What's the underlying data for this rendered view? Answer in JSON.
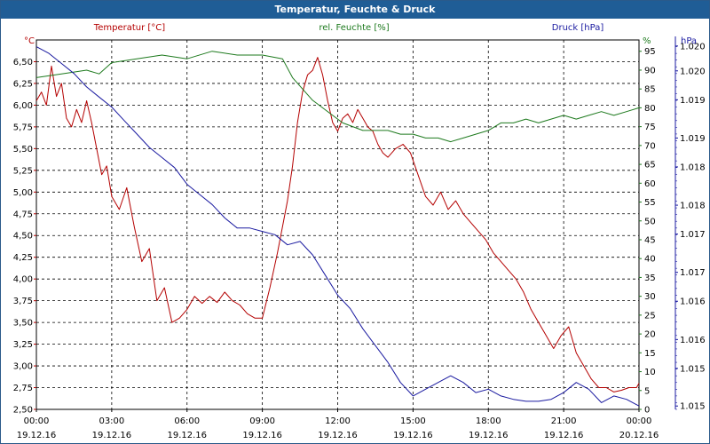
{
  "window": {
    "title": "Temperatur, Feuchte & Druck"
  },
  "chart_data": {
    "type": "line",
    "title": "Temperatur, Feuchte & Druck",
    "grid": true,
    "x_ticks": [
      {
        "time": "00:00",
        "date": "19.12.16"
      },
      {
        "time": "03:00",
        "date": "19.12.16"
      },
      {
        "time": "06:00",
        "date": "19.12.16"
      },
      {
        "time": "09:00",
        "date": "19.12.16"
      },
      {
        "time": "12:00",
        "date": "19.12.16"
      },
      {
        "time": "15:00",
        "date": "19.12.16"
      },
      {
        "time": "18:00",
        "date": "19.12.16"
      },
      {
        "time": "21:00",
        "date": "19.12.16"
      },
      {
        "time": "00:00",
        "date": "20.12.16"
      }
    ],
    "x_hours_range": [
      0,
      24
    ],
    "axes": {
      "temperature": {
        "label": "Temperatur [°C]",
        "unit": "°C",
        "color": "#b40000",
        "range": [
          2.5,
          6.75
        ],
        "tick_labels": [
          "2,50",
          "2,75",
          "3,00",
          "3,25",
          "3,50",
          "3,75",
          "4,00",
          "4,25",
          "4,50",
          "4,75",
          "5,00",
          "5,25",
          "5,50",
          "5,75",
          "6,00",
          "6,25",
          "6,50"
        ]
      },
      "humidity": {
        "label": "rel. Feuchte [%]",
        "unit": "%",
        "color": "#1e7a1e",
        "range": [
          0,
          98
        ],
        "tick_labels": [
          "0",
          "5",
          "10",
          "15",
          "20",
          "25",
          "30",
          "35",
          "40",
          "45",
          "50",
          "55",
          "60",
          "65",
          "70",
          "75",
          "80",
          "85",
          "90",
          "95"
        ]
      },
      "pressure": {
        "label": "Druck [hPa]",
        "unit": "hPa",
        "color": "#1a1aa0",
        "range": [
          1014.8,
          1020.3
        ],
        "tick_labels": [
          "1.015",
          "1.015",
          "1.016",
          "1.016",
          "1.017",
          "1.017",
          "1.018",
          "1.018",
          "1.019",
          "1.019",
          "1.020",
          "1.020"
        ]
      }
    },
    "series": [
      {
        "name": "Temperatur [°C]",
        "axis": "temperature",
        "x": [
          0,
          0.2,
          0.4,
          0.6,
          0.8,
          1,
          1.2,
          1.4,
          1.6,
          1.8,
          2,
          2.2,
          2.4,
          2.6,
          2.8,
          3,
          3.3,
          3.6,
          3.9,
          4.2,
          4.5,
          4.8,
          5.1,
          5.4,
          5.7,
          6,
          6.3,
          6.6,
          6.9,
          7.2,
          7.5,
          7.8,
          8.1,
          8.4,
          8.7,
          9,
          9.3,
          9.6,
          9.8,
          10,
          10.2,
          10.4,
          10.6,
          10.8,
          11,
          11.2,
          11.4,
          11.6,
          11.8,
          12,
          12.2,
          12.4,
          12.6,
          12.8,
          13,
          13.2,
          13.4,
          13.6,
          13.8,
          14,
          14.3,
          14.6,
          14.9,
          15.2,
          15.5,
          15.8,
          16.1,
          16.4,
          16.7,
          17,
          17.3,
          17.6,
          17.9,
          18.2,
          18.5,
          18.8,
          19.1,
          19.4,
          19.7,
          20,
          20.3,
          20.6,
          20.9,
          21.2,
          21.5,
          21.8,
          22.1,
          22.4,
          22.7,
          23,
          23.3,
          23.6,
          23.9,
          24
        ],
        "values": [
          6.05,
          6.15,
          6.0,
          6.45,
          6.1,
          6.25,
          5.85,
          5.75,
          5.95,
          5.8,
          6.05,
          5.8,
          5.5,
          5.2,
          5.3,
          4.95,
          4.8,
          5.05,
          4.6,
          4.2,
          4.35,
          3.75,
          3.9,
          3.5,
          3.55,
          3.65,
          3.8,
          3.72,
          3.8,
          3.73,
          3.85,
          3.75,
          3.7,
          3.6,
          3.55,
          3.55,
          3.9,
          4.3,
          4.6,
          4.9,
          5.3,
          5.8,
          6.15,
          6.35,
          6.4,
          6.55,
          6.35,
          6.05,
          5.8,
          5.7,
          5.85,
          5.9,
          5.8,
          5.95,
          5.85,
          5.75,
          5.7,
          5.55,
          5.45,
          5.4,
          5.5,
          5.55,
          5.45,
          5.2,
          4.95,
          4.85,
          5.0,
          4.8,
          4.9,
          4.75,
          4.65,
          4.55,
          4.45,
          4.3,
          4.2,
          4.1,
          4.0,
          3.85,
          3.65,
          3.5,
          3.35,
          3.2,
          3.35,
          3.45,
          3.15,
          3.0,
          2.85,
          2.75,
          2.75,
          2.7,
          2.72,
          2.75,
          2.75,
          2.8
        ]
      },
      {
        "name": "rel. Feuchte [%]",
        "axis": "humidity",
        "x": [
          0,
          1,
          2,
          2.5,
          3,
          4,
          5,
          6,
          7,
          8,
          9,
          9.8,
          10.2,
          10.6,
          11,
          11.4,
          11.8,
          12.2,
          12.6,
          13,
          13.5,
          14,
          14.5,
          15,
          15.5,
          16,
          16.5,
          17,
          17.5,
          18,
          18.5,
          19,
          19.5,
          20,
          20.5,
          21,
          21.5,
          22,
          22.5,
          23,
          23.5,
          24
        ],
        "values": [
          88,
          89,
          90,
          89,
          92,
          93,
          94,
          93,
          95,
          94,
          94,
          93,
          88,
          85,
          82,
          80,
          78,
          76,
          75,
          74,
          74,
          74,
          73,
          73,
          72,
          72,
          71,
          72,
          73,
          74,
          76,
          76,
          77,
          76,
          77,
          78,
          77,
          78,
          79,
          78,
          79,
          80
        ]
      },
      {
        "name": "Druck [hPa]",
        "axis": "pressure",
        "x": [
          0,
          0.5,
          1,
          1.5,
          2,
          2.5,
          3,
          3.5,
          4,
          4.5,
          5,
          5.5,
          6,
          6.5,
          7,
          7.5,
          8,
          8.5,
          9,
          9.5,
          10,
          10.5,
          11,
          11.5,
          12,
          12.5,
          13,
          13.5,
          14,
          14.5,
          15,
          15.5,
          16,
          16.5,
          17,
          17.5,
          18,
          18.5,
          19,
          19.5,
          20,
          20.5,
          21,
          21.5,
          22,
          22.5,
          23,
          23.5,
          24
        ],
        "values": [
          1020.2,
          1020.1,
          1019.95,
          1019.8,
          1019.6,
          1019.45,
          1019.3,
          1019.1,
          1018.9,
          1018.7,
          1018.55,
          1018.4,
          1018.15,
          1018.0,
          1017.85,
          1017.65,
          1017.5,
          1017.5,
          1017.45,
          1017.4,
          1017.25,
          1017.3,
          1017.1,
          1016.8,
          1016.5,
          1016.3,
          1016.0,
          1015.75,
          1015.5,
          1015.2,
          1015.0,
          1015.1,
          1015.2,
          1015.3,
          1015.2,
          1015.05,
          1015.1,
          1015.0,
          1014.95,
          1014.92,
          1014.92,
          1014.95,
          1015.05,
          1015.2,
          1015.1,
          1014.9,
          1015.0,
          1014.95,
          1014.85
        ]
      }
    ]
  }
}
